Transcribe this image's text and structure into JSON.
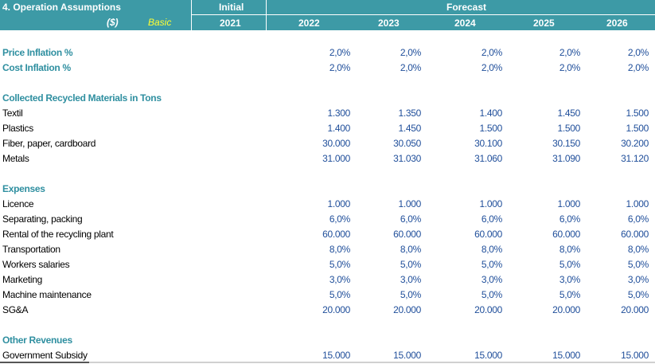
{
  "header": {
    "title": "4. Operation Assumptions",
    "currency": "($)",
    "scenario": "Basic",
    "initial_label": "Initial",
    "forecast_label": "Forecast",
    "years": [
      "2021",
      "2022",
      "2023",
      "2024",
      "2025",
      "2026"
    ]
  },
  "inflation": {
    "price": {
      "label": "Price Inflation %",
      "values": [
        "2,0%",
        "2,0%",
        "2,0%",
        "2,0%",
        "2,0%"
      ]
    },
    "cost": {
      "label": "Cost Inflation %",
      "values": [
        "2,0%",
        "2,0%",
        "2,0%",
        "2,0%",
        "2,0%"
      ]
    }
  },
  "materials": {
    "title": "Collected Recycled Materials in Tons",
    "rows": [
      {
        "label": "Textil",
        "values": [
          "1.300",
          "1.350",
          "1.400",
          "1.450",
          "1.500"
        ]
      },
      {
        "label": "Plastics",
        "values": [
          "1.400",
          "1.450",
          "1.500",
          "1.500",
          "1.500"
        ]
      },
      {
        "label": "Fiber, paper, cardboard",
        "values": [
          "30.000",
          "30.050",
          "30.100",
          "30.150",
          "30.200"
        ]
      },
      {
        "label": "Metals",
        "values": [
          "31.000",
          "31.030",
          "31.060",
          "31.090",
          "31.120"
        ]
      }
    ]
  },
  "expenses": {
    "title": "Expenses",
    "rows": [
      {
        "label": "Licence",
        "values": [
          "1.000",
          "1.000",
          "1.000",
          "1.000",
          "1.000"
        ]
      },
      {
        "label": "Separating, packing",
        "values": [
          "6,0%",
          "6,0%",
          "6,0%",
          "6,0%",
          "6,0%"
        ]
      },
      {
        "label": "Rental of the recycling plant",
        "values": [
          "60.000",
          "60.000",
          "60.000",
          "60.000",
          "60.000"
        ]
      },
      {
        "label": "Transportation",
        "values": [
          "8,0%",
          "8,0%",
          "8,0%",
          "8,0%",
          "8,0%"
        ]
      },
      {
        "label": "Workers salaries",
        "values": [
          "5,0%",
          "5,0%",
          "5,0%",
          "5,0%",
          "5,0%"
        ]
      },
      {
        "label": "Marketing",
        "values": [
          "3,0%",
          "3,0%",
          "3,0%",
          "3,0%",
          "3,0%"
        ]
      },
      {
        "label": "Machine maintenance",
        "values": [
          "5,0%",
          "5,0%",
          "5,0%",
          "5,0%",
          "5,0%"
        ]
      },
      {
        "label": "SG&A",
        "values": [
          "20.000",
          "20.000",
          "20.000",
          "20.000",
          "20.000"
        ]
      }
    ]
  },
  "other_revenues": {
    "title": "Other Revenues",
    "rows": [
      {
        "label": "Government Subsidy",
        "values": [
          "15.000",
          "15.000",
          "15.000",
          "15.000",
          "15.000"
        ]
      }
    ]
  }
}
